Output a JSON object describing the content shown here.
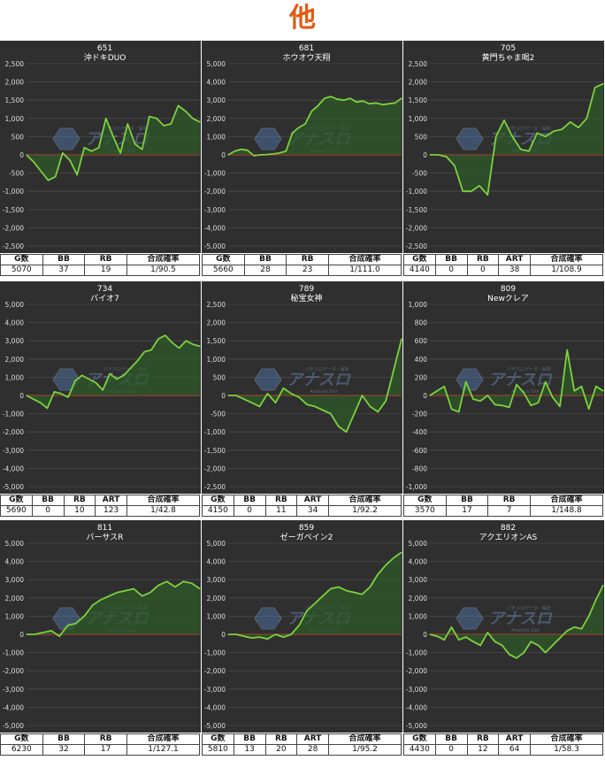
{
  "page": {
    "title": "他"
  },
  "watermark": {
    "brand": "アナスロ",
    "sub": "Analysis Slot",
    "tag": "パチスロデータ・解析"
  },
  "colors": {
    "line": "#7dd13f",
    "area": "#2f5a2a",
    "zero_line": "#c0392b",
    "grid": "#4a4a4a",
    "bg": "#2f2f2f"
  },
  "charts": [
    {
      "number": "651",
      "name": "沖ドキDUO",
      "headers": [
        "G数",
        "BB",
        "RB",
        "合成確率"
      ],
      "values": [
        "5070",
        "37",
        "19",
        "1/90.5"
      ]
    },
    {
      "number": "681",
      "name": "ホウオウ天翔",
      "headers": [
        "G数",
        "BB",
        "RB",
        "合成確率"
      ],
      "values": [
        "5660",
        "28",
        "23",
        "1/111.0"
      ]
    },
    {
      "number": "705",
      "name": "黄門ちゃま喝2",
      "headers": [
        "G数",
        "BB",
        "RB",
        "ART",
        "合成確率"
      ],
      "values": [
        "4140",
        "0",
        "0",
        "38",
        "1/108.9"
      ]
    },
    {
      "number": "734",
      "name": "バイオ7",
      "headers": [
        "G数",
        "BB",
        "RB",
        "ART",
        "合成確率"
      ],
      "values": [
        "5690",
        "0",
        "10",
        "123",
        "1/42.8"
      ]
    },
    {
      "number": "789",
      "name": "秘宝女神",
      "headers": [
        "G数",
        "BB",
        "RB",
        "ART",
        "合成確率"
      ],
      "values": [
        "4150",
        "0",
        "11",
        "34",
        "1/92.2"
      ]
    },
    {
      "number": "809",
      "name": "Newクレア",
      "headers": [
        "G数",
        "BB",
        "RB",
        "合成確率"
      ],
      "values": [
        "3570",
        "17",
        "7",
        "1/148.8"
      ]
    },
    {
      "number": "811",
      "name": "バーサスR",
      "headers": [
        "G数",
        "BB",
        "RB",
        "合成確率"
      ],
      "values": [
        "6230",
        "32",
        "17",
        "1/127.1"
      ]
    },
    {
      "number": "859",
      "name": "ゼーガペイン2",
      "headers": [
        "G数",
        "BB",
        "RB",
        "ART",
        "合成確率"
      ],
      "values": [
        "5810",
        "13",
        "20",
        "28",
        "1/95.2"
      ]
    },
    {
      "number": "882",
      "name": "アクエリオンAS",
      "headers": [
        "G数",
        "BB",
        "RB",
        "ART",
        "合成確率"
      ],
      "values": [
        "4430",
        "0",
        "12",
        "64",
        "1/58.3"
      ]
    }
  ],
  "chart_data": [
    {
      "type": "area",
      "title": "651 沖ドキDUO",
      "ylim": [
        -2500,
        2500
      ],
      "yticks": [
        2500,
        2000,
        1500,
        1000,
        500,
        0,
        -500,
        -1000,
        -1500,
        -2000,
        -2500
      ],
      "y": [
        0,
        -200,
        -450,
        -700,
        -600,
        50,
        -150,
        -550,
        200,
        100,
        200,
        1000,
        500,
        50,
        850,
        300,
        150,
        1050,
        1000,
        800,
        850,
        1350,
        1200,
        1000,
        900
      ]
    },
    {
      "type": "area",
      "title": "681 ホウオウ天翔",
      "ylim": [
        -5000,
        5000
      ],
      "yticks": [
        5000,
        4000,
        3000,
        2000,
        1000,
        0,
        -1000,
        -2000,
        -3000,
        -4000,
        -5000
      ],
      "y": [
        0,
        200,
        300,
        250,
        -50,
        0,
        20,
        50,
        100,
        200,
        1200,
        1500,
        1700,
        2400,
        2700,
        3100,
        3200,
        3050,
        3000,
        3100,
        2900,
        2950,
        2800,
        2850,
        2750,
        2800,
        2850,
        3100
      ]
    },
    {
      "type": "area",
      "title": "705 黄門ちゃま喝2",
      "ylim": [
        -2500,
        2500
      ],
      "yticks": [
        2500,
        2000,
        1500,
        1000,
        500,
        0,
        -500,
        -1000,
        -1500,
        -2000,
        -2500
      ],
      "y": [
        0,
        0,
        -50,
        -300,
        -1000,
        -1000,
        -850,
        -1100,
        500,
        950,
        500,
        150,
        100,
        600,
        500,
        650,
        700,
        900,
        750,
        1000,
        1850,
        1950
      ]
    },
    {
      "type": "area",
      "title": "734 バイオ7",
      "ylim": [
        -5000,
        5000
      ],
      "yticks": [
        5000,
        4000,
        3000,
        2000,
        1000,
        0,
        -1000,
        -2000,
        -3000,
        -4000,
        -5000
      ],
      "y": [
        0,
        -200,
        -400,
        -700,
        200,
        100,
        -100,
        800,
        1100,
        900,
        700,
        300,
        1200,
        900,
        1100,
        1500,
        1900,
        2400,
        2500,
        3100,
        3300,
        2900,
        2600,
        3000,
        2800,
        2700
      ]
    },
    {
      "type": "area",
      "title": "789 秘宝女神",
      "ylim": [
        -2500,
        2500
      ],
      "yticks": [
        2500,
        2000,
        1500,
        1000,
        500,
        0,
        -500,
        -1000,
        -1500,
        -2000,
        -2500
      ],
      "y": [
        0,
        0,
        -100,
        -200,
        -300,
        50,
        -200,
        200,
        50,
        -50,
        -250,
        -300,
        -400,
        -500,
        -850,
        -1000,
        -500,
        0,
        -300,
        -450,
        -150,
        700,
        1550
      ]
    },
    {
      "type": "area",
      "title": "809 Newクレア",
      "ylim": [
        -1000,
        1000
      ],
      "yticks": [
        1000,
        800,
        600,
        400,
        200,
        0,
        -200,
        -400,
        -600,
        -800,
        -1000
      ],
      "y": [
        0,
        50,
        100,
        -150,
        -180,
        150,
        -40,
        -60,
        0,
        -100,
        -110,
        -130,
        120,
        30,
        -110,
        -80,
        150,
        -20,
        -120,
        500,
        50,
        100,
        -150,
        100,
        50
      ]
    },
    {
      "type": "area",
      "title": "811 バーサスR",
      "ylim": [
        -5000,
        5000
      ],
      "yticks": [
        5000,
        4000,
        3000,
        2000,
        1000,
        0,
        -1000,
        -2000,
        -3000,
        -4000,
        -5000
      ],
      "y": [
        0,
        0,
        100,
        200,
        -100,
        500,
        600,
        1000,
        1600,
        1900,
        2100,
        2300,
        2400,
        2500,
        2100,
        2300,
        2700,
        2900,
        2600,
        2900,
        2800,
        2500
      ]
    },
    {
      "type": "area",
      "title": "859 ゼーガペイン2",
      "ylim": [
        -5000,
        5000
      ],
      "yticks": [
        5000,
        4000,
        3000,
        2000,
        1000,
        0,
        -1000,
        -2000,
        -3000,
        -4000,
        -5000
      ],
      "y": [
        0,
        0,
        -100,
        -200,
        -150,
        -250,
        0,
        -150,
        0,
        500,
        1300,
        1700,
        2100,
        2500,
        2600,
        2400,
        2300,
        2200,
        2600,
        3300,
        3800,
        4200,
        4500
      ]
    },
    {
      "type": "area",
      "title": "882 アクエリオンAS",
      "ylim": [
        -5000,
        5000
      ],
      "yticks": [
        5000,
        4000,
        3000,
        2000,
        1000,
        0,
        -1000,
        -2000,
        -3000,
        -4000,
        -5000
      ],
      "y": [
        0,
        -100,
        -300,
        400,
        -300,
        -150,
        -400,
        -600,
        100,
        -400,
        -600,
        -1100,
        -1300,
        -1000,
        -400,
        -600,
        -1000,
        -600,
        -200,
        200,
        400,
        300,
        1000,
        1900,
        2700
      ]
    }
  ]
}
